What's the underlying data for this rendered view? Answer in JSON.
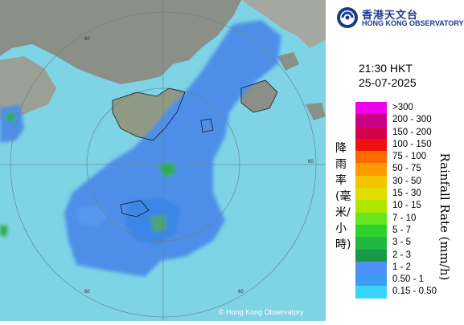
{
  "brand": {
    "name_cn": "香港天文台",
    "name_en": "HONG KONG OBSERVATORY",
    "logo_icon": "hko-logo-icon"
  },
  "timestamp": {
    "time": "21:30 HKT",
    "date": "25-07-2025"
  },
  "legend": {
    "title_cn": "降雨率(毫米/小時)",
    "title_en": "Rainfall Rate (mm/h)",
    "items": [
      {
        "label": ">300",
        "color": "#ee00ee"
      },
      {
        "label": "200 - 300",
        "color": "#cc0088"
      },
      {
        "label": "150 - 200",
        "color": "#d4004a"
      },
      {
        "label": "100 - 150",
        "color": "#ee1111"
      },
      {
        "label": "75 - 100",
        "color": "#ff6a00"
      },
      {
        "label": "50 - 75",
        "color": "#ff9a00"
      },
      {
        "label": "30 - 50",
        "color": "#f5c400"
      },
      {
        "label": "15 - 30",
        "color": "#e2dd00"
      },
      {
        "label": "10 - 15",
        "color": "#aee600"
      },
      {
        "label": "7 - 10",
        "color": "#66e61e"
      },
      {
        "label": "5 - 7",
        "color": "#2ed12e"
      },
      {
        "label": "3 - 5",
        "color": "#20b840"
      },
      {
        "label": "2 - 3",
        "color": "#199a48"
      },
      {
        "label": "1 - 2",
        "color": "#4f8ff7"
      },
      {
        "label": "0.50 - 1",
        "color": "#3b9bf0"
      },
      {
        "label": "0.15 - 0.50",
        "color": "#38d4fa"
      }
    ]
  },
  "radar": {
    "ring_labels": [
      "60",
      "60",
      "60",
      "60"
    ],
    "copyright": "© Hong Kong Observatory"
  }
}
